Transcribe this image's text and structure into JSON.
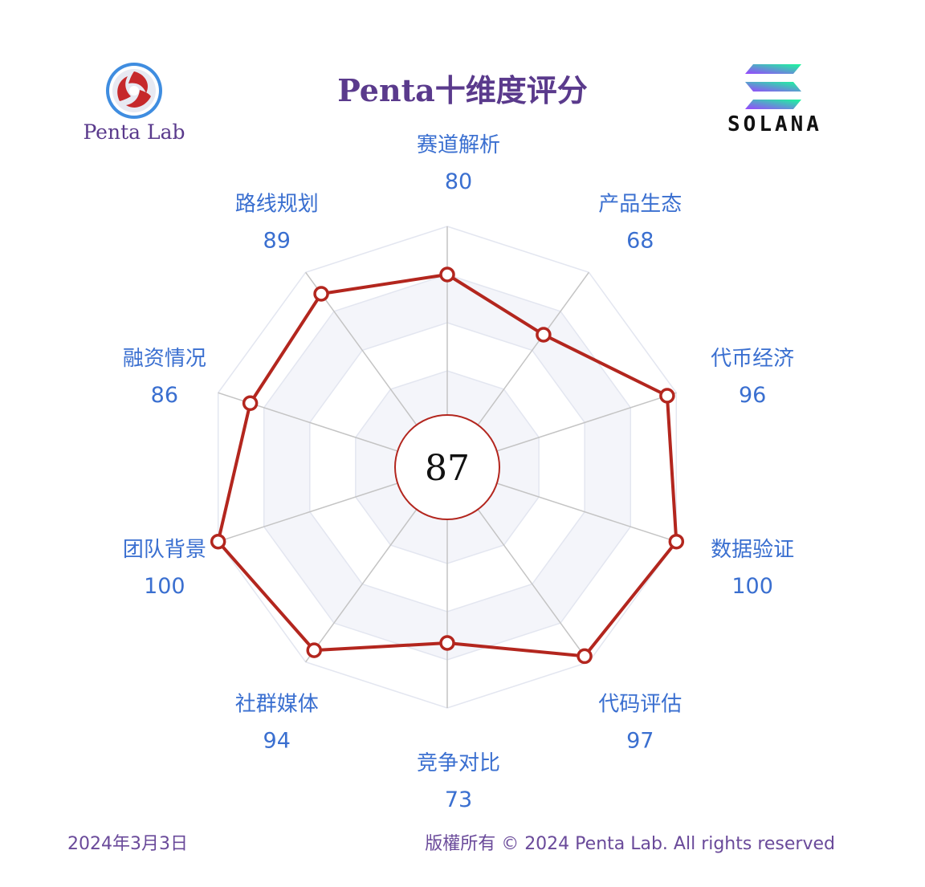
{
  "header": {
    "title": "Penta十维度评分",
    "brand_left": "Penta Lab",
    "brand_right": "SOLANA"
  },
  "chart_data": {
    "type": "radar",
    "categories": [
      "赛道解析",
      "产品生态",
      "代币经济",
      "数据验证",
      "代码评估",
      "竞争对比",
      "社群媒体",
      "团队背景",
      "融资情况",
      "路线规划"
    ],
    "values": [
      80,
      68,
      96,
      100,
      97,
      73,
      94,
      100,
      86,
      89
    ],
    "value_labels": [
      "80",
      "68",
      "96",
      "100",
      "97",
      "73",
      "94",
      "100",
      "86",
      "89"
    ],
    "range": [
      0,
      100
    ],
    "center_score": "87",
    "series_color": "#b3261e",
    "grid_color": "#e3e6f0",
    "band_fill": "#f4f5fa"
  },
  "footer": {
    "date": "2024年3月3日",
    "copyright": "版權所有 © 2024 Penta Lab. All rights reserved"
  }
}
